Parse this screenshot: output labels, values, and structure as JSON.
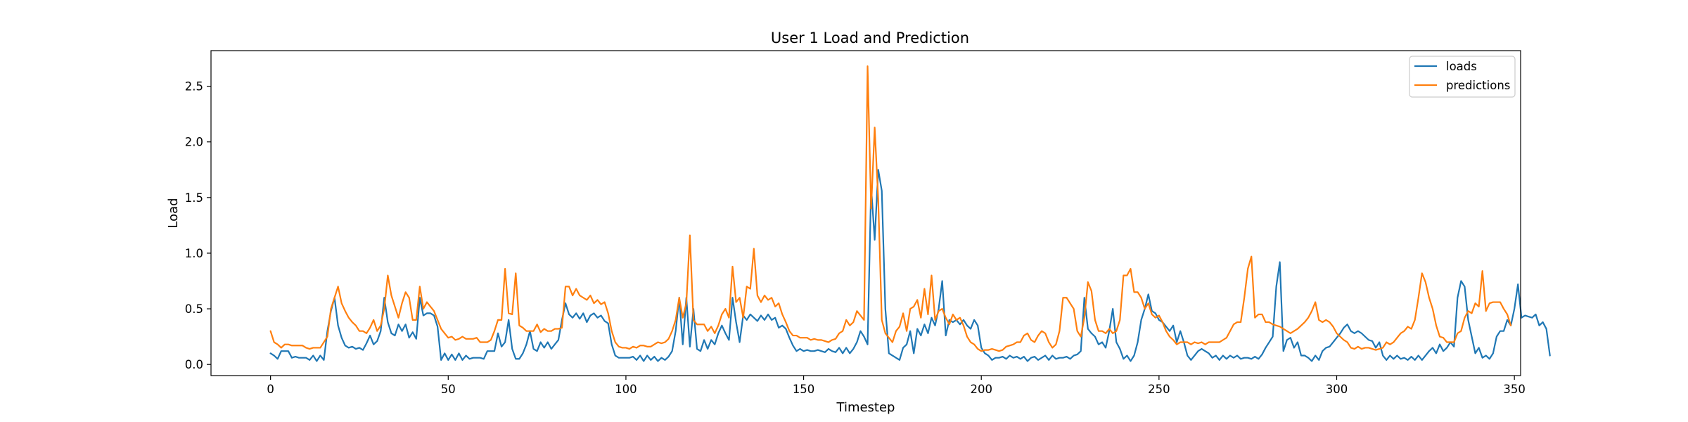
{
  "chart_data": {
    "type": "line",
    "title": "User 1 Load and Prediction",
    "xlabel": "Timestep",
    "ylabel": "Load",
    "xlim": [
      -16.75,
      351.75
    ],
    "ylim": [
      -0.1,
      2.82
    ],
    "xticks": [
      0,
      50,
      100,
      150,
      200,
      250,
      300,
      350
    ],
    "yticks": [
      0.0,
      0.5,
      1.0,
      1.5,
      2.0,
      2.5
    ],
    "xtick_labels": [
      "0",
      "50",
      "100",
      "150",
      "200",
      "250",
      "300",
      "350"
    ],
    "ytick_labels": [
      "0.0",
      "0.5",
      "1.0",
      "1.5",
      "2.0",
      "2.5"
    ],
    "grid": false,
    "legend_position": "upper right",
    "series": [
      {
        "name": "loads",
        "color": "#1f77b4",
        "values": [
          0.1,
          0.08,
          0.05,
          0.12,
          0.12,
          0.12,
          0.06,
          0.07,
          0.06,
          0.06,
          0.06,
          0.04,
          0.08,
          0.03,
          0.08,
          0.04,
          0.3,
          0.48,
          0.6,
          0.35,
          0.24,
          0.17,
          0.15,
          0.16,
          0.14,
          0.15,
          0.13,
          0.19,
          0.26,
          0.18,
          0.21,
          0.3,
          0.6,
          0.38,
          0.28,
          0.26,
          0.36,
          0.3,
          0.36,
          0.24,
          0.29,
          0.23,
          0.6,
          0.44,
          0.46,
          0.46,
          0.44,
          0.34,
          0.04,
          0.1,
          0.04,
          0.09,
          0.04,
          0.1,
          0.04,
          0.08,
          0.05,
          0.06,
          0.06,
          0.06,
          0.05,
          0.12,
          0.12,
          0.12,
          0.28,
          0.16,
          0.2,
          0.4,
          0.14,
          0.05,
          0.05,
          0.1,
          0.18,
          0.3,
          0.14,
          0.12,
          0.2,
          0.15,
          0.2,
          0.14,
          0.18,
          0.22,
          0.4,
          0.55,
          0.45,
          0.42,
          0.46,
          0.41,
          0.46,
          0.38,
          0.44,
          0.46,
          0.42,
          0.44,
          0.39,
          0.37,
          0.18,
          0.08,
          0.06,
          0.06,
          0.06,
          0.06,
          0.07,
          0.04,
          0.08,
          0.03,
          0.08,
          0.04,
          0.07,
          0.03,
          0.06,
          0.04,
          0.07,
          0.12,
          0.3,
          0.6,
          0.18,
          0.6,
          0.16,
          0.5,
          0.14,
          0.12,
          0.22,
          0.14,
          0.22,
          0.18,
          0.28,
          0.35,
          0.28,
          0.22,
          0.6,
          0.38,
          0.2,
          0.44,
          0.4,
          0.45,
          0.42,
          0.39,
          0.44,
          0.4,
          0.45,
          0.4,
          0.42,
          0.33,
          0.35,
          0.32,
          0.24,
          0.17,
          0.12,
          0.14,
          0.12,
          0.13,
          0.12,
          0.12,
          0.13,
          0.12,
          0.11,
          0.14,
          0.12,
          0.11,
          0.15,
          0.1,
          0.15,
          0.1,
          0.14,
          0.2,
          0.3,
          0.25,
          0.18,
          1.6,
          1.12,
          1.75,
          1.56,
          0.5,
          0.1,
          0.08,
          0.06,
          0.04,
          0.15,
          0.18,
          0.3,
          0.1,
          0.32,
          0.26,
          0.36,
          0.28,
          0.42,
          0.35,
          0.5,
          0.75,
          0.26,
          0.4,
          0.38,
          0.4,
          0.36,
          0.4,
          0.35,
          0.32,
          0.4,
          0.35,
          0.15,
          0.1,
          0.08,
          0.04,
          0.06,
          0.06,
          0.07,
          0.05,
          0.08,
          0.06,
          0.07,
          0.05,
          0.07,
          0.03,
          0.06,
          0.07,
          0.04,
          0.06,
          0.08,
          0.04,
          0.08,
          0.05,
          0.06,
          0.06,
          0.07,
          0.05,
          0.08,
          0.09,
          0.12,
          0.6,
          0.32,
          0.28,
          0.25,
          0.18,
          0.2,
          0.15,
          0.3,
          0.5,
          0.2,
          0.14,
          0.05,
          0.08,
          0.03,
          0.08,
          0.2,
          0.4,
          0.5,
          0.63,
          0.48,
          0.46,
          0.4,
          0.38,
          0.34,
          0.3,
          0.35,
          0.2,
          0.3,
          0.2,
          0.08,
          0.04,
          0.08,
          0.12,
          0.14,
          0.12,
          0.1,
          0.06,
          0.08,
          0.04,
          0.08,
          0.05,
          0.08,
          0.06,
          0.08,
          0.05,
          0.06,
          0.06,
          0.05,
          0.07,
          0.05,
          0.09,
          0.15,
          0.2,
          0.25,
          0.7,
          0.92,
          0.12,
          0.22,
          0.24,
          0.15,
          0.2,
          0.08,
          0.08,
          0.06,
          0.03,
          0.08,
          0.04,
          0.12,
          0.15,
          0.16,
          0.2,
          0.24,
          0.28,
          0.33,
          0.36,
          0.3,
          0.28,
          0.3,
          0.28,
          0.25,
          0.22,
          0.21,
          0.15,
          0.2,
          0.08,
          0.04,
          0.08,
          0.05,
          0.08,
          0.05,
          0.06,
          0.04,
          0.07,
          0.04,
          0.08,
          0.04,
          0.08,
          0.12,
          0.15,
          0.1,
          0.18,
          0.12,
          0.15,
          0.2,
          0.16,
          0.6,
          0.75,
          0.7,
          0.4,
          0.25,
          0.1,
          0.15,
          0.06,
          0.08,
          0.05,
          0.1,
          0.25,
          0.3,
          0.3,
          0.4,
          0.35,
          0.5,
          0.72,
          0.42,
          0.44,
          0.43,
          0.42,
          0.45,
          0.35,
          0.38,
          0.32,
          0.08
        ]
      },
      {
        "name": "predictions",
        "color": "#ff7f0e",
        "values": [
          0.3,
          0.2,
          0.18,
          0.15,
          0.18,
          0.18,
          0.17,
          0.17,
          0.17,
          0.17,
          0.15,
          0.14,
          0.15,
          0.15,
          0.15,
          0.2,
          0.25,
          0.5,
          0.6,
          0.7,
          0.55,
          0.48,
          0.42,
          0.38,
          0.35,
          0.3,
          0.3,
          0.28,
          0.33,
          0.4,
          0.3,
          0.35,
          0.5,
          0.8,
          0.62,
          0.52,
          0.42,
          0.55,
          0.65,
          0.6,
          0.4,
          0.4,
          0.7,
          0.5,
          0.56,
          0.52,
          0.48,
          0.4,
          0.32,
          0.28,
          0.24,
          0.25,
          0.22,
          0.23,
          0.25,
          0.23,
          0.23,
          0.23,
          0.24,
          0.2,
          0.2,
          0.2,
          0.22,
          0.3,
          0.4,
          0.4,
          0.86,
          0.46,
          0.45,
          0.82,
          0.35,
          0.33,
          0.3,
          0.3,
          0.3,
          0.36,
          0.29,
          0.32,
          0.3,
          0.3,
          0.32,
          0.32,
          0.33,
          0.7,
          0.7,
          0.62,
          0.68,
          0.62,
          0.6,
          0.58,
          0.62,
          0.55,
          0.58,
          0.54,
          0.56,
          0.46,
          0.3,
          0.2,
          0.16,
          0.15,
          0.15,
          0.14,
          0.16,
          0.15,
          0.17,
          0.17,
          0.16,
          0.16,
          0.18,
          0.2,
          0.19,
          0.2,
          0.23,
          0.3,
          0.4,
          0.6,
          0.42,
          0.55,
          1.16,
          0.4,
          0.36,
          0.36,
          0.36,
          0.3,
          0.34,
          0.28,
          0.35,
          0.45,
          0.5,
          0.42,
          0.88,
          0.56,
          0.6,
          0.42,
          0.7,
          0.68,
          1.04,
          0.62,
          0.56,
          0.62,
          0.58,
          0.6,
          0.52,
          0.55,
          0.45,
          0.38,
          0.3,
          0.26,
          0.26,
          0.24,
          0.24,
          0.24,
          0.22,
          0.23,
          0.22,
          0.22,
          0.21,
          0.2,
          0.22,
          0.23,
          0.28,
          0.3,
          0.4,
          0.35,
          0.38,
          0.48,
          0.44,
          0.4,
          2.68,
          1.4,
          2.13,
          1.48,
          0.4,
          0.28,
          0.24,
          0.2,
          0.3,
          0.34,
          0.46,
          0.3,
          0.5,
          0.52,
          0.58,
          0.42,
          0.68,
          0.45,
          0.8,
          0.4,
          0.48,
          0.5,
          0.42,
          0.36,
          0.45,
          0.4,
          0.42,
          0.35,
          0.25,
          0.2,
          0.18,
          0.14,
          0.12,
          0.13,
          0.13,
          0.14,
          0.13,
          0.12,
          0.13,
          0.16,
          0.17,
          0.18,
          0.2,
          0.2,
          0.26,
          0.28,
          0.22,
          0.2,
          0.26,
          0.3,
          0.28,
          0.2,
          0.15,
          0.18,
          0.3,
          0.6,
          0.6,
          0.55,
          0.5,
          0.3,
          0.25,
          0.42,
          0.74,
          0.66,
          0.4,
          0.3,
          0.3,
          0.28,
          0.32,
          0.28,
          0.3,
          0.4,
          0.8,
          0.8,
          0.86,
          0.65,
          0.65,
          0.6,
          0.5,
          0.55,
          0.45,
          0.42,
          0.44,
          0.38,
          0.3,
          0.25,
          0.22,
          0.18,
          0.2,
          0.2,
          0.2,
          0.18,
          0.2,
          0.19,
          0.2,
          0.18,
          0.2,
          0.2,
          0.2,
          0.2,
          0.22,
          0.24,
          0.3,
          0.36,
          0.38,
          0.38,
          0.6,
          0.86,
          0.97,
          0.42,
          0.45,
          0.45,
          0.38,
          0.38,
          0.36,
          0.35,
          0.34,
          0.32,
          0.3,
          0.28,
          0.3,
          0.32,
          0.35,
          0.38,
          0.42,
          0.48,
          0.56,
          0.4,
          0.38,
          0.4,
          0.38,
          0.34,
          0.28,
          0.25,
          0.22,
          0.2,
          0.15,
          0.14,
          0.16,
          0.14,
          0.15,
          0.15,
          0.14,
          0.13,
          0.14,
          0.15,
          0.2,
          0.18,
          0.2,
          0.24,
          0.28,
          0.3,
          0.34,
          0.32,
          0.4,
          0.6,
          0.82,
          0.74,
          0.6,
          0.5,
          0.35,
          0.25,
          0.24,
          0.2,
          0.2,
          0.2,
          0.28,
          0.3,
          0.42,
          0.48,
          0.46,
          0.55,
          0.52,
          0.84,
          0.48,
          0.55,
          0.56,
          0.56,
          0.56,
          0.5,
          0.45,
          0.35
        ]
      }
    ]
  }
}
